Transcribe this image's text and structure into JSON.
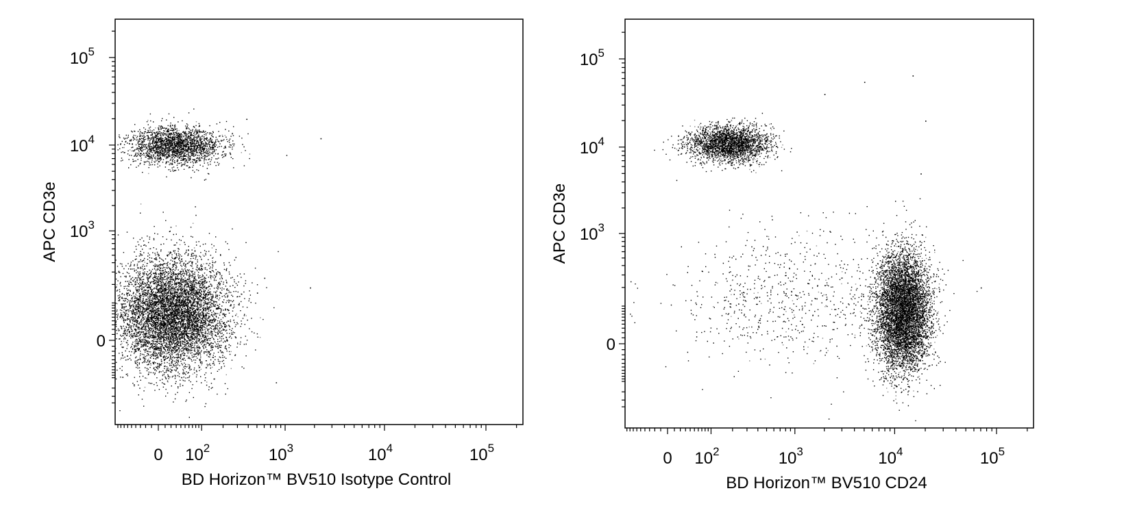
{
  "chart_data": [
    {
      "type": "scatter",
      "subtype": "flow-cytometry-dot-plot",
      "xlabel": "BD Horizon™ BV510 Isotype Control",
      "ylabel": "APC CD3e",
      "x_scale": "biexponential",
      "y_scale": "biexponential",
      "xlim": [
        -250,
        250000
      ],
      "ylim": [
        -250,
        250000
      ],
      "x_tick_labels": [
        "0",
        "10^2",
        "10^3",
        "10^4",
        "10^5"
      ],
      "y_tick_labels": [
        "0",
        "10^3",
        "10^4",
        "10^5"
      ],
      "grid": false,
      "legend": "none",
      "populations": [
        {
          "x_center": 28,
          "y_center": 10000,
          "approx_events": 2200
        },
        {
          "x_center": 22,
          "y_center": 60,
          "approx_events": 7000
        }
      ],
      "outliers": [
        [
          2300,
          12000
        ],
        [
          380,
          20000
        ],
        [
          1800,
          180
        ],
        [
          800,
          -120
        ],
        [
          500,
          150
        ],
        [
          600,
          250
        ]
      ]
    },
    {
      "type": "scatter",
      "subtype": "flow-cytometry-dot-plot",
      "xlabel": "BD Horizon™ BV510 CD24",
      "ylabel": "APC CD3e",
      "x_scale": "biexponential",
      "y_scale": "biexponential",
      "xlim": [
        -250,
        250000
      ],
      "ylim": [
        -250,
        250000
      ],
      "x_tick_labels": [
        "0",
        "10^2",
        "10^3",
        "10^4",
        "10^5"
      ],
      "y_tick_labels": [
        "0",
        "10^3",
        "10^4",
        "10^5"
      ],
      "grid": false,
      "legend": "none",
      "populations": [
        {
          "x_center": 180,
          "y_center": 11000,
          "approx_events": 2600
        },
        {
          "x_center": 12000,
          "y_center": 80,
          "approx_events": 6500
        },
        {
          "x_center": 900,
          "y_center": 150,
          "approx_events": 700
        }
      ],
      "outliers": [
        [
          15000,
          65000
        ],
        [
          5000,
          55000
        ],
        [
          2000,
          40000
        ],
        [
          20000,
          20000
        ],
        [
          18000,
          5000
        ],
        [
          70000,
          200
        ]
      ]
    }
  ]
}
